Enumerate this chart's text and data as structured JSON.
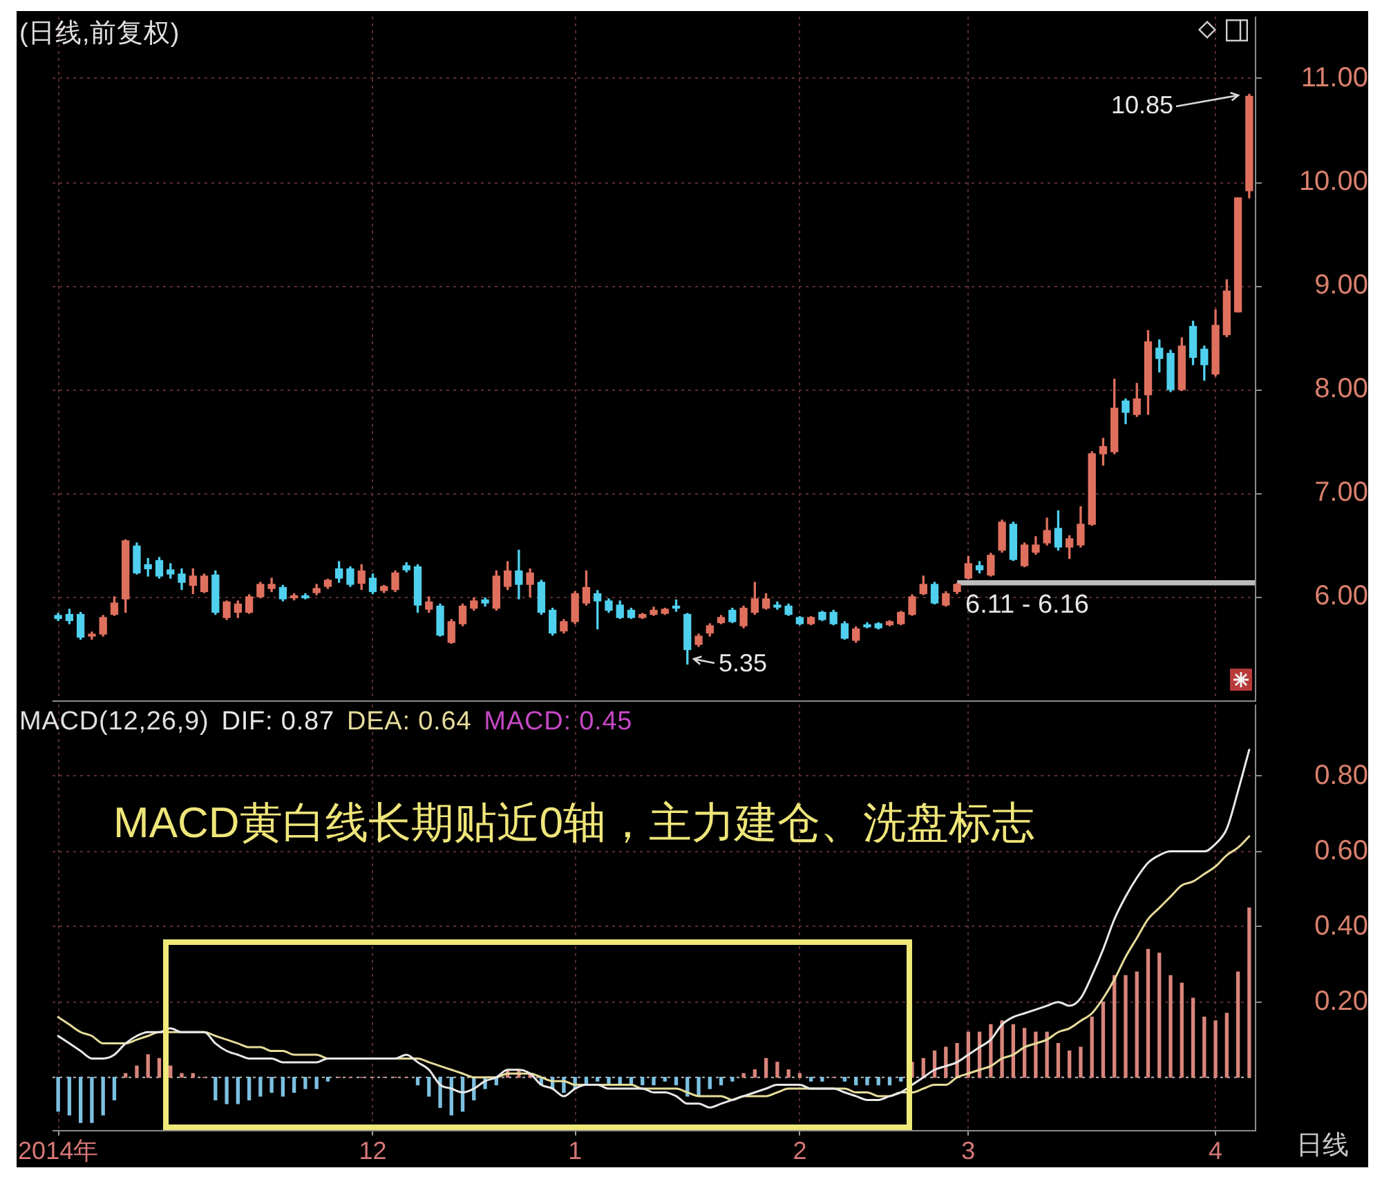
{
  "chart_data": [
    {
      "type": "candlestick",
      "title": "(日线,前复权)",
      "categories": [
        null,
        null,
        null,
        null,
        null,
        null,
        null,
        null,
        null,
        null,
        null,
        null,
        null,
        null,
        null,
        null,
        null,
        null,
        null,
        null,
        null,
        null,
        null,
        null,
        null,
        null,
        null,
        null,
        null,
        null,
        null,
        null,
        null,
        null,
        null,
        null,
        null,
        null,
        null,
        null,
        null,
        null,
        null,
        null,
        null,
        null,
        null,
        null,
        null,
        null,
        null,
        null,
        null,
        null,
        null,
        null,
        null,
        null,
        null,
        null,
        null,
        null,
        null,
        null,
        null,
        null,
        null,
        null,
        null,
        null,
        null,
        null,
        null,
        null,
        null,
        null,
        null,
        null,
        null,
        null,
        null,
        null,
        null,
        null,
        null,
        null,
        null,
        null,
        null,
        null,
        null,
        null,
        null,
        null,
        null,
        null,
        null,
        null,
        null,
        null,
        null,
        null,
        null,
        null,
        null,
        null,
        null
      ],
      "ohlc": [
        [
          5.82,
          5.84,
          5.77,
          5.79
        ],
        [
          5.83,
          5.88,
          5.74,
          5.77
        ],
        [
          5.83,
          5.85,
          5.59,
          5.61
        ],
        [
          5.62,
          5.66,
          5.59,
          5.64
        ],
        [
          5.64,
          5.82,
          5.62,
          5.8
        ],
        [
          5.83,
          6.0,
          5.82,
          5.94
        ],
        [
          5.98,
          6.55,
          5.85,
          6.54
        ],
        [
          6.49,
          6.52,
          6.22,
          6.23
        ],
        [
          6.31,
          6.37,
          6.2,
          6.27
        ],
        [
          6.35,
          6.38,
          6.18,
          6.2
        ],
        [
          6.26,
          6.32,
          6.18,
          6.22
        ],
        [
          6.22,
          6.27,
          6.07,
          6.14
        ],
        [
          6.11,
          6.27,
          6.03,
          6.2
        ],
        [
          6.05,
          6.22,
          6.04,
          6.2
        ],
        [
          6.21,
          6.25,
          5.83,
          5.85
        ],
        [
          5.8,
          5.96,
          5.78,
          5.95
        ],
        [
          5.85,
          5.96,
          5.8,
          5.93
        ],
        [
          5.85,
          6.02,
          5.84,
          6.0
        ],
        [
          6.0,
          6.14,
          5.99,
          6.12
        ],
        [
          6.08,
          6.18,
          6.05,
          6.12
        ],
        [
          6.09,
          6.11,
          5.96,
          5.98
        ],
        [
          5.99,
          6.03,
          5.97,
          6.01
        ],
        [
          6.01,
          6.03,
          5.98,
          5.99
        ],
        [
          6.04,
          6.12,
          6.02,
          6.08
        ],
        [
          6.1,
          6.17,
          6.08,
          6.16
        ],
        [
          6.27,
          6.34,
          6.14,
          6.18
        ],
        [
          6.27,
          6.29,
          6.1,
          6.12
        ],
        [
          6.13,
          6.31,
          6.07,
          6.25
        ],
        [
          6.18,
          6.22,
          6.03,
          6.05
        ],
        [
          6.06,
          6.11,
          6.04,
          6.1
        ],
        [
          6.07,
          6.25,
          6.05,
          6.23
        ],
        [
          6.3,
          6.33,
          6.24,
          6.26
        ],
        [
          6.29,
          6.31,
          5.85,
          5.92
        ],
        [
          5.88,
          6.0,
          5.85,
          5.95
        ],
        [
          5.91,
          5.93,
          5.62,
          5.63
        ],
        [
          5.56,
          5.78,
          5.55,
          5.76
        ],
        [
          5.74,
          5.93,
          5.72,
          5.91
        ],
        [
          5.89,
          5.99,
          5.87,
          5.96
        ],
        [
          5.97,
          5.99,
          5.91,
          5.94
        ],
        [
          5.89,
          6.25,
          5.87,
          6.2
        ],
        [
          6.1,
          6.34,
          6.07,
          6.25
        ],
        [
          6.25,
          6.45,
          5.98,
          6.12
        ],
        [
          6.12,
          6.27,
          6.0,
          6.23
        ],
        [
          6.14,
          6.16,
          5.83,
          5.85
        ],
        [
          5.87,
          5.89,
          5.63,
          5.65
        ],
        [
          5.67,
          5.78,
          5.65,
          5.76
        ],
        [
          5.76,
          6.05,
          5.74,
          6.03
        ],
        [
          5.94,
          6.25,
          5.92,
          6.09
        ],
        [
          6.03,
          6.06,
          5.69,
          5.96
        ],
        [
          5.96,
          5.98,
          5.85,
          5.87
        ],
        [
          5.92,
          5.96,
          5.79,
          5.8
        ],
        [
          5.87,
          5.89,
          5.79,
          5.8
        ],
        [
          5.8,
          5.84,
          5.79,
          5.83
        ],
        [
          5.83,
          5.9,
          5.82,
          5.87
        ],
        [
          5.84,
          5.89,
          5.83,
          5.88
        ],
        [
          5.91,
          5.97,
          5.86,
          5.89
        ],
        [
          5.83,
          5.84,
          5.35,
          5.49
        ],
        [
          5.54,
          5.64,
          5.52,
          5.62
        ],
        [
          5.65,
          5.74,
          5.62,
          5.72
        ],
        [
          5.75,
          5.82,
          5.74,
          5.8
        ],
        [
          5.87,
          5.89,
          5.75,
          5.76
        ],
        [
          5.72,
          5.91,
          5.7,
          5.89
        ],
        [
          5.85,
          6.14,
          5.83,
          5.98
        ],
        [
          5.89,
          6.03,
          5.88,
          5.98
        ],
        [
          5.92,
          5.95,
          5.88,
          5.9
        ],
        [
          5.91,
          5.93,
          5.82,
          5.83
        ],
        [
          5.8,
          5.81,
          5.73,
          5.74
        ],
        [
          5.74,
          5.81,
          5.73,
          5.8
        ],
        [
          5.85,
          5.86,
          5.77,
          5.78
        ],
        [
          5.85,
          5.87,
          5.73,
          5.74
        ],
        [
          5.74,
          5.76,
          5.59,
          5.6
        ],
        [
          5.58,
          5.71,
          5.56,
          5.69
        ],
        [
          5.73,
          5.75,
          5.7,
          5.71
        ],
        [
          5.74,
          5.75,
          5.69,
          5.7
        ],
        [
          5.73,
          5.77,
          5.72,
          5.76
        ],
        [
          5.74,
          5.86,
          5.73,
          5.85
        ],
        [
          5.83,
          6.02,
          5.82,
          6.0
        ],
        [
          6.03,
          6.2,
          6.02,
          6.12
        ],
        [
          6.12,
          6.14,
          5.93,
          5.94
        ],
        [
          5.92,
          6.05,
          5.91,
          6.03
        ],
        [
          6.05,
          6.13,
          6.03,
          6.12
        ],
        [
          6.18,
          6.39,
          6.17,
          6.32
        ],
        [
          6.3,
          6.34,
          6.23,
          6.26
        ],
        [
          6.21,
          6.42,
          6.2,
          6.4
        ],
        [
          6.45,
          6.74,
          6.43,
          6.72
        ],
        [
          6.7,
          6.72,
          6.35,
          6.36
        ],
        [
          6.3,
          6.52,
          6.29,
          6.5
        ],
        [
          6.43,
          6.58,
          6.41,
          6.5
        ],
        [
          6.52,
          6.76,
          6.5,
          6.64
        ],
        [
          6.66,
          6.83,
          6.45,
          6.48
        ],
        [
          6.48,
          6.59,
          6.37,
          6.56
        ],
        [
          6.5,
          6.87,
          6.48,
          6.7
        ],
        [
          6.7,
          7.4,
          6.69,
          7.38
        ],
        [
          7.38,
          7.53,
          7.27,
          7.45
        ],
        [
          7.4,
          8.1,
          7.38,
          7.82
        ],
        [
          7.89,
          7.91,
          7.67,
          7.78
        ],
        [
          7.76,
          8.06,
          7.74,
          7.91
        ],
        [
          7.95,
          8.57,
          7.76,
          8.46
        ],
        [
          8.4,
          8.48,
          8.17,
          8.3
        ],
        [
          8.35,
          8.38,
          7.98,
          8.0
        ],
        [
          8.0,
          8.5,
          7.99,
          8.42
        ],
        [
          8.61,
          8.66,
          8.24,
          8.31
        ],
        [
          8.39,
          8.42,
          8.09,
          8.24
        ],
        [
          8.15,
          8.77,
          8.13,
          8.62
        ],
        [
          8.53,
          9.06,
          8.51,
          8.95
        ],
        [
          8.75,
          9.85,
          8.75,
          9.85
        ],
        [
          9.92,
          10.85,
          9.85,
          10.83
        ]
      ],
      "colors": [
        "#4fd0ee",
        "#4fd0ee",
        "#4fd0ee",
        "#e0705e",
        "#e0705e",
        "#e0705e",
        "#e0705e",
        "#4fd0ee",
        "#4fd0ee",
        "#4fd0ee",
        "#4fd0ee",
        "#4fd0ee",
        "#e0705e",
        "#e0705e",
        "#4fd0ee",
        "#e0705e",
        "#e0705e",
        "#e0705e",
        "#e0705e",
        "#e0705e",
        "#4fd0ee",
        "#e0705e",
        "#4fd0ee",
        "#e0705e",
        "#e0705e",
        "#4fd0ee",
        "#4fd0ee",
        "#e0705e",
        "#4fd0ee",
        "#e0705e",
        "#e0705e",
        "#4fd0ee",
        "#4fd0ee",
        "#e0705e",
        "#4fd0ee",
        "#e0705e",
        "#e0705e",
        "#e0705e",
        "#4fd0ee",
        "#e0705e",
        "#e0705e",
        "#4fd0ee",
        "#e0705e",
        "#4fd0ee",
        "#4fd0ee",
        "#e0705e",
        "#e0705e",
        "#e0705e",
        "#4fd0ee",
        "#4fd0ee",
        "#4fd0ee",
        "#4fd0ee",
        "#e0705e",
        "#e0705e",
        "#e0705e",
        "#4fd0ee",
        "#4fd0ee",
        "#e0705e",
        "#e0705e",
        "#e0705e",
        "#4fd0ee",
        "#e0705e",
        "#e0705e",
        "#e0705e",
        "#4fd0ee",
        "#4fd0ee",
        "#4fd0ee",
        "#e0705e",
        "#4fd0ee",
        "#4fd0ee",
        "#4fd0ee",
        "#e0705e",
        "#4fd0ee",
        "#4fd0ee",
        "#e0705e",
        "#e0705e",
        "#e0705e",
        "#e0705e",
        "#4fd0ee",
        "#e0705e",
        "#e0705e",
        "#e0705e",
        "#4fd0ee",
        "#e0705e",
        "#e0705e",
        "#4fd0ee",
        "#e0705e",
        "#e0705e",
        "#e0705e",
        "#4fd0ee",
        "#e0705e",
        "#e0705e",
        "#e0705e",
        "#e0705e",
        "#e0705e",
        "#4fd0ee",
        "#e0705e",
        "#e0705e",
        "#4fd0ee",
        "#4fd0ee",
        "#e0705e",
        "#4fd0ee",
        "#4fd0ee",
        "#e0705e",
        "#e0705e",
        "#e0705e",
        "#e0705e"
      ],
      "ylim": [
        5.0,
        11.6
      ],
      "yticks": [
        {
          "value": 6,
          "label": "6.00"
        },
        {
          "value": 7,
          "label": "7.00"
        },
        {
          "value": 8,
          "label": "8.00"
        },
        {
          "value": 9,
          "label": "9.00"
        },
        {
          "value": 10,
          "label": "10.00"
        },
        {
          "value": 11,
          "label": "11.00"
        }
      ],
      "grid": true,
      "tick_labels": "y",
      "bands": [
        {
          "axis": "y",
          "from": 6.11,
          "to": 6.16,
          "label": "6.11 - 6.16",
          "color": "#bdbdbd"
        }
      ],
      "annotations": [
        "10.85",
        "5.35"
      ]
    },
    {
      "type": "line",
      "title": "MACD(12,26,9)",
      "categories": [
        "2014年",
        null,
        null,
        null,
        null,
        null,
        null,
        null,
        null,
        null,
        null,
        null,
        null,
        null,
        null,
        null,
        null,
        null,
        null,
        null,
        null,
        null,
        null,
        null,
        null,
        null,
        null,
        null,
        "12",
        null,
        null,
        null,
        null,
        null,
        null,
        null,
        null,
        null,
        null,
        null,
        null,
        null,
        null,
        null,
        null,
        null,
        "1",
        null,
        null,
        null,
        null,
        null,
        null,
        null,
        null,
        null,
        null,
        null,
        null,
        null,
        null,
        null,
        null,
        null,
        null,
        null,
        "2",
        null,
        null,
        null,
        null,
        null,
        null,
        null,
        null,
        null,
        null,
        null,
        null,
        null,
        null,
        "3",
        null,
        null,
        null,
        null,
        null,
        null,
        null,
        null,
        null,
        null,
        null,
        null,
        null,
        null,
        null,
        null,
        null,
        null,
        null,
        null,
        null,
        "4",
        null,
        null,
        null
      ],
      "series": [
        {
          "name": "DIF: 0.87",
          "color": "#e8e8e8",
          "values": [
            0.11,
            0.09,
            0.07,
            0.05,
            0.05,
            0.06,
            0.09,
            0.11,
            0.12,
            0.12,
            0.13,
            0.12,
            0.12,
            0.12,
            0.09,
            0.07,
            0.06,
            0.05,
            0.05,
            0.05,
            0.04,
            0.04,
            0.04,
            0.04,
            0.05,
            0.05,
            0.05,
            0.05,
            0.05,
            0.05,
            0.05,
            0.06,
            0.04,
            0.02,
            -0.02,
            -0.03,
            -0.04,
            -0.03,
            -0.01,
            0,
            0.02,
            0.02,
            0.01,
            -0.02,
            -0.03,
            -0.05,
            -0.03,
            -0.02,
            -0.02,
            -0.03,
            -0.03,
            -0.03,
            -0.03,
            -0.04,
            -0.04,
            -0.05,
            -0.07,
            -0.07,
            -0.08,
            -0.07,
            -0.06,
            -0.05,
            -0.04,
            -0.03,
            -0.02,
            -0.02,
            -0.02,
            -0.03,
            -0.03,
            -0.03,
            -0.04,
            -0.05,
            -0.06,
            -0.06,
            -0.05,
            -0.04,
            -0.02,
            0,
            0.02,
            0.03,
            0.04,
            0.06,
            0.08,
            0.1,
            0.14,
            0.16,
            0.17,
            0.18,
            0.19,
            0.2,
            0.19,
            0.21,
            0.27,
            0.34,
            0.42,
            0.48,
            0.53,
            0.57,
            0.59,
            0.6,
            0.6,
            0.6,
            0.6,
            0.62,
            0.66,
            0.76,
            0.87
          ]
        },
        {
          "name": "DEA: 0.64",
          "color": "#e6dc9a",
          "values": [
            0.16,
            0.14,
            0.12,
            0.11,
            0.09,
            0.09,
            0.09,
            0.1,
            0.11,
            0.12,
            0.12,
            0.12,
            0.12,
            0.12,
            0.11,
            0.1,
            0.09,
            0.08,
            0.08,
            0.07,
            0.07,
            0.06,
            0.06,
            0.06,
            0.05,
            0.05,
            0.05,
            0.05,
            0.05,
            0.05,
            0.05,
            0.05,
            0.05,
            0.04,
            0.03,
            0.02,
            0.01,
            0,
            0,
            0,
            0.01,
            0.01,
            0.01,
            0,
            -0.01,
            -0.01,
            -0.02,
            -0.02,
            -0.02,
            -0.02,
            -0.02,
            -0.02,
            -0.03,
            -0.03,
            -0.03,
            -0.03,
            -0.04,
            -0.05,
            -0.05,
            -0.05,
            -0.06,
            -0.05,
            -0.05,
            -0.05,
            -0.04,
            -0.03,
            -0.03,
            -0.03,
            -0.03,
            -0.03,
            -0.03,
            -0.04,
            -0.04,
            -0.05,
            -0.05,
            -0.04,
            -0.04,
            -0.03,
            -0.02,
            -0.02,
            0,
            0.01,
            0.02,
            0.03,
            0.05,
            0.06,
            0.08,
            0.09,
            0.1,
            0.12,
            0.13,
            0.15,
            0.17,
            0.21,
            0.26,
            0.32,
            0.37,
            0.42,
            0.45,
            0.48,
            0.51,
            0.52,
            0.54,
            0.56,
            0.59,
            0.61,
            0.64
          ]
        },
        {
          "type": "bar",
          "colors": [
            "#7cc0e0",
            "#7cc0e0",
            "#7cc0e0",
            "#7cc0e0",
            "#7cc0e0",
            "#7cc0e0",
            "#d9857c",
            "#d9857c",
            "#d9857c",
            "#d9857c",
            "#d9857c",
            "#d9857c",
            "#d9857c",
            "#d9857c",
            "#7cc0e0",
            "#7cc0e0",
            "#7cc0e0",
            "#7cc0e0",
            "#7cc0e0",
            "#7cc0e0",
            "#7cc0e0",
            "#7cc0e0",
            "#7cc0e0",
            "#7cc0e0",
            "#7cc0e0",
            "#d9857c",
            "#d9857c",
            "#d9857c",
            "#d9857c",
            "#d9857c",
            "#d9857c",
            "#d9857c",
            "#7cc0e0",
            "#7cc0e0",
            "#7cc0e0",
            "#7cc0e0",
            "#7cc0e0",
            "#7cc0e0",
            "#7cc0e0",
            "#7cc0e0",
            "#d9857c",
            "#d9857c",
            "#d9857c",
            "#7cc0e0",
            "#7cc0e0",
            "#7cc0e0",
            "#7cc0e0",
            "#7cc0e0",
            "#7cc0e0",
            "#7cc0e0",
            "#7cc0e0",
            "#7cc0e0",
            "#7cc0e0",
            "#7cc0e0",
            "#7cc0e0",
            "#7cc0e0",
            "#7cc0e0",
            "#7cc0e0",
            "#7cc0e0",
            "#7cc0e0",
            "#7cc0e0",
            "#d9857c",
            "#d9857c",
            "#d9857c",
            "#d9857c",
            "#d9857c",
            "#d9857c",
            "#7cc0e0",
            "#7cc0e0",
            "#d9857c",
            "#7cc0e0",
            "#7cc0e0",
            "#7cc0e0",
            "#7cc0e0",
            "#7cc0e0",
            "#7cc0e0",
            "#d9857c",
            "#d9857c",
            "#d9857c",
            "#d9857c",
            "#d9857c",
            "#d9857c",
            "#d9857c",
            "#d9857c",
            "#d9857c",
            "#d9857c",
            "#d9857c",
            "#d9857c",
            "#d9857c",
            "#d9857c",
            "#d9857c",
            "#d9857c",
            "#d9857c",
            "#d9857c",
            "#d9857c",
            "#d9857c",
            "#d9857c",
            "#d9857c",
            "#d9857c",
            "#d9857c",
            "#d9857c",
            "#d9857c",
            "#d9857c",
            "#d9857c",
            "#d9857c",
            "#d9857c",
            "#d9857c"
          ],
          "values": [
            -0.09,
            -0.1,
            -0.12,
            -0.12,
            -0.1,
            -0.06,
            0.01,
            0.03,
            0.06,
            0.05,
            0.03,
            0.01,
            0.01,
            0,
            -0.06,
            -0.07,
            -0.07,
            -0.06,
            -0.05,
            -0.04,
            -0.05,
            -0.04,
            -0.03,
            -0.03,
            -0.01,
            0,
            0,
            0,
            0,
            0,
            0,
            0,
            -0.02,
            -0.05,
            -0.08,
            -0.1,
            -0.09,
            -0.06,
            -0.03,
            -0.02,
            0.02,
            0.02,
            0.01,
            -0.02,
            -0.03,
            -0.04,
            -0.03,
            -0.02,
            -0.01,
            -0.02,
            -0.02,
            -0.02,
            -0.02,
            -0.02,
            -0.01,
            -0.02,
            -0.05,
            -0.05,
            -0.03,
            -0.02,
            -0.01,
            0.01,
            0.02,
            0.05,
            0.04,
            0.02,
            0.01,
            -0.01,
            -0.01,
            0,
            -0.01,
            -0.02,
            -0.02,
            -0.02,
            -0.02,
            -0.01,
            0.04,
            0.05,
            0.07,
            0.08,
            0.09,
            0.12,
            0.12,
            0.14,
            0.15,
            0.14,
            0.13,
            0.12,
            0.12,
            0.09,
            0.07,
            0.08,
            0.16,
            0.2,
            0.27,
            0.27,
            0.28,
            0.34,
            0.33,
            0.27,
            0.25,
            0.21,
            0.16,
            0.15,
            0.17,
            0.28,
            0.45
          ]
        }
      ],
      "ylim": [
        -0.14,
        0.99
      ],
      "yticks": [
        {
          "value": 0.2,
          "label": "0.20"
        },
        {
          "value": 0.4,
          "label": "0.40"
        },
        {
          "value": 0.6,
          "label": "0.60"
        },
        {
          "value": 0.8,
          "label": "0.80"
        }
      ],
      "grid": true,
      "legend": "top left",
      "marker": "none",
      "line_style": "solid",
      "ref_lines": [
        {
          "axis": "y",
          "value": 0,
          "color": "#b8b8b8",
          "line_style": "dotted"
        }
      ],
      "annotations": [
        "MACD: 0.45",
        "MACD黄白线长期贴近0轴，主力建仓、洗盘标志",
        "日线"
      ]
    }
  ]
}
